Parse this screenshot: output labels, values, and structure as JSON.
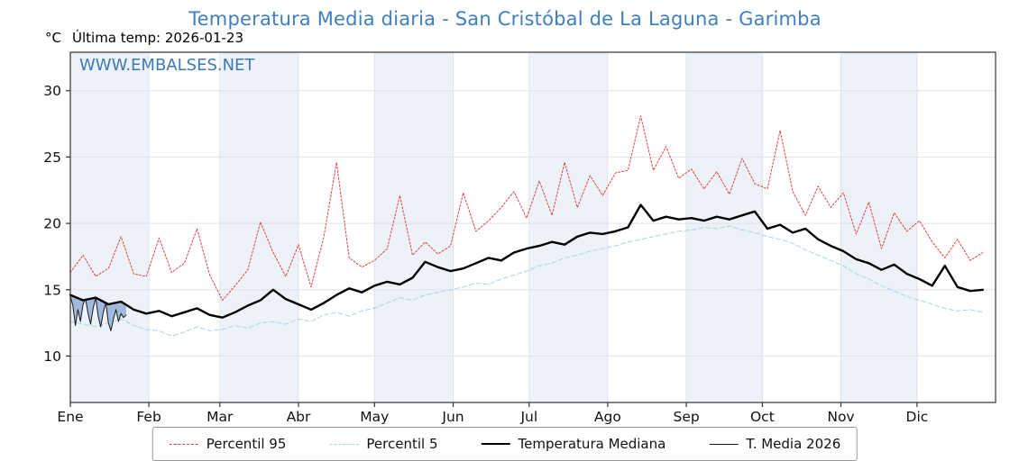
{
  "title": "Temperatura Media diaria - San Cristóbal de La Laguna - Garimba",
  "header": {
    "y_unit": "°C",
    "last_temp_label": "Última temp: 2026-01-23",
    "watermark": "WWW.EMBALSES.NET"
  },
  "colors": {
    "title": "#3f7fbe",
    "watermark": "#3d7ab5",
    "band": "#edf2f9",
    "grid": "#dde3ec",
    "axis": "#333333",
    "tick_text": "#111111",
    "fill_2026": "#6b95c8"
  },
  "chart_data": {
    "type": "line",
    "title": "Temperatura Media diaria - San Cristóbal de La Laguna - Garimba",
    "xlabel": "",
    "ylabel": "°C",
    "xlim": [
      0,
      365
    ],
    "ylim": [
      6.5,
      32.9
    ],
    "yticks": [
      10,
      15,
      20,
      25,
      30
    ],
    "grid": true,
    "legend_position": "bottom",
    "month_starts": [
      0,
      31,
      59,
      90,
      120,
      151,
      181,
      212,
      243,
      273,
      304,
      334
    ],
    "month_labels": [
      "Ene",
      "Feb",
      "Mar",
      "Abr",
      "May",
      "Jun",
      "Jul",
      "Ago",
      "Sep",
      "Oct",
      "Nov",
      "Dic"
    ],
    "x": [
      0,
      5,
      10,
      15,
      20,
      25,
      30,
      35,
      40,
      45,
      50,
      55,
      60,
      65,
      70,
      75,
      80,
      85,
      90,
      95,
      100,
      105,
      110,
      115,
      120,
      125,
      130,
      135,
      140,
      145,
      150,
      155,
      160,
      165,
      170,
      175,
      180,
      185,
      190,
      195,
      200,
      205,
      210,
      215,
      220,
      225,
      230,
      235,
      240,
      245,
      250,
      255,
      260,
      265,
      270,
      275,
      280,
      285,
      290,
      295,
      300,
      305,
      310,
      315,
      320,
      325,
      330,
      335,
      340,
      345,
      350,
      355,
      360
    ],
    "series": [
      {
        "name": "Percentil 95",
        "color": "#e53e3e",
        "dash": "2 2",
        "width": 1,
        "values": [
          16.3,
          17.6,
          16.0,
          16.6,
          19.0,
          16.2,
          16.0,
          18.9,
          16.3,
          17.0,
          19.6,
          16.1,
          14.2,
          15.3,
          16.5,
          20.1,
          17.8,
          16.0,
          18.4,
          15.2,
          19.0,
          24.6,
          17.4,
          16.7,
          17.2,
          18.1,
          22.1,
          17.6,
          18.6,
          17.7,
          18.3,
          22.3,
          19.4,
          20.2,
          21.2,
          22.4,
          20.4,
          23.2,
          20.6,
          24.6,
          21.2,
          23.6,
          22.1,
          23.8,
          24.0,
          28.1,
          24.0,
          25.8,
          23.4,
          24.1,
          22.6,
          23.9,
          22.2,
          24.9,
          23.0,
          22.6,
          27.0,
          22.4,
          20.6,
          22.8,
          21.2,
          22.3,
          19.2,
          21.6,
          18.1,
          20.8,
          19.4,
          20.2,
          18.6,
          17.4,
          18.8,
          17.2,
          17.8
        ]
      },
      {
        "name": "Percentil 5",
        "color": "#a7d4e4",
        "dash": "5 3",
        "width": 1,
        "values": [
          12.6,
          12.4,
          12.2,
          12.5,
          12.8,
          12.3,
          12.0,
          11.9,
          11.5,
          11.8,
          12.2,
          11.9,
          12.0,
          12.3,
          12.1,
          12.5,
          12.6,
          12.4,
          12.8,
          12.6,
          13.1,
          13.3,
          13.0,
          13.4,
          13.6,
          14.0,
          14.4,
          14.2,
          14.6,
          14.8,
          15.0,
          15.2,
          15.5,
          15.4,
          15.8,
          16.1,
          16.4,
          16.8,
          17.0,
          17.4,
          17.6,
          17.9,
          18.1,
          18.3,
          18.6,
          18.8,
          19.0,
          19.2,
          19.4,
          19.5,
          19.7,
          19.6,
          19.8,
          19.5,
          19.3,
          19.0,
          18.8,
          18.5,
          18.0,
          17.6,
          17.2,
          16.8,
          16.2,
          15.8,
          15.3,
          14.9,
          14.5,
          14.2,
          13.9,
          13.6,
          13.4,
          13.5,
          13.3
        ]
      },
      {
        "name": "Temperatura Mediana",
        "color": "#000000",
        "dash": "",
        "width": 2.4,
        "values": [
          14.6,
          14.2,
          14.4,
          13.9,
          14.1,
          13.5,
          13.2,
          13.4,
          13.0,
          13.3,
          13.6,
          13.1,
          12.9,
          13.3,
          13.8,
          14.2,
          15.0,
          14.3,
          13.9,
          13.5,
          14.0,
          14.6,
          15.1,
          14.8,
          15.3,
          15.6,
          15.4,
          15.9,
          17.1,
          16.7,
          16.4,
          16.6,
          17.0,
          17.4,
          17.2,
          17.8,
          18.1,
          18.3,
          18.6,
          18.4,
          19.0,
          19.3,
          19.2,
          19.4,
          19.7,
          21.4,
          20.2,
          20.5,
          20.3,
          20.4,
          20.2,
          20.5,
          20.3,
          20.6,
          20.9,
          19.6,
          19.9,
          19.3,
          19.6,
          18.8,
          18.3,
          17.9,
          17.3,
          17.0,
          16.5,
          16.9,
          16.2,
          15.8,
          15.3,
          16.8,
          15.2,
          14.9,
          15.0
        ]
      },
      {
        "name": "T. Media 2026",
        "color": "#1a1a1a",
        "dash": "",
        "width": 1,
        "x": [
          0,
          1,
          2,
          3,
          4,
          5,
          6,
          7,
          8,
          9,
          10,
          11,
          12,
          13,
          14,
          15,
          16,
          17,
          18,
          19,
          20,
          21,
          22
        ],
        "values": [
          14.5,
          13.8,
          12.3,
          13.5,
          12.6,
          13.9,
          14.3,
          13.2,
          12.4,
          13.6,
          14.4,
          13.0,
          12.2,
          13.3,
          14.0,
          12.5,
          11.9,
          12.8,
          13.5,
          12.6,
          13.2,
          12.9,
          13.1
        ],
        "fill_against": "Temperatura Mediana"
      }
    ]
  }
}
